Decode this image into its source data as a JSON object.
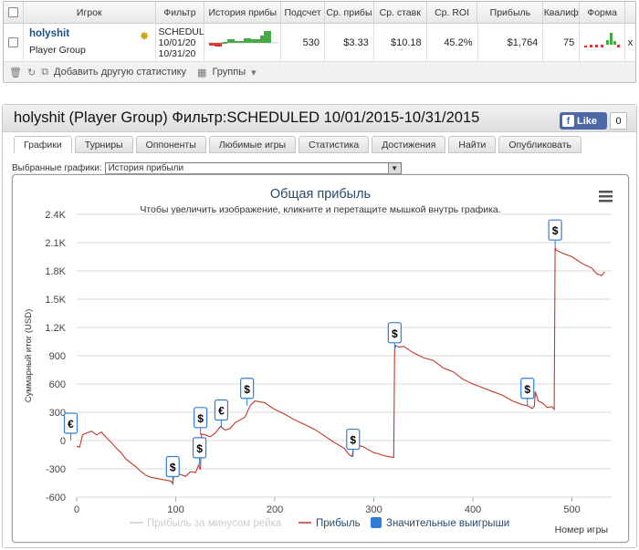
{
  "table": {
    "headers": [
      "Игрок",
      "Фильтр",
      "История прибы",
      "Подсчет",
      "Ср. прибы",
      "Ср. ставк",
      "Ср. ROI",
      "Прибыль",
      "Квалиф",
      "Форма"
    ],
    "row": {
      "player": "holyshit",
      "group": "Player Group",
      "filter_lines": [
        "SCHEDUL",
        "10/01/20",
        "10/31/20"
      ],
      "count": "530",
      "avg_profit": "$3.33",
      "avg_stake": "$10.18",
      "avg_roi": "45.2%",
      "profit": "$1,764",
      "qualif": "75",
      "close": "x"
    },
    "footer": {
      "add_stat": "Добавить другую статистику",
      "groups": "Группы"
    }
  },
  "panel": {
    "title": "holyshit (Player Group) Фильтр:SCHEDULED 10/01/2015-10/31/2015",
    "like": "Like",
    "like_count": "0",
    "tabs": [
      "Графики",
      "Турниры",
      "Оппоненты",
      "Любимые игры",
      "Статистика",
      "Достижения",
      "Найти",
      "Опубликовать"
    ],
    "active_tab": 0,
    "select_label": "Выбранные графики:",
    "select_value": "История прибыли"
  },
  "chart_data": {
    "type": "line",
    "title": "Общая прибыль",
    "subtitle": "Чтобы увеличить изображение, кликните и перетащите мышкой внутрь графика.",
    "ylabel": "Суммарный итог (USD)",
    "xlabel": "Номер игры",
    "xlim": [
      0,
      540
    ],
    "ylim": [
      -600,
      2400
    ],
    "x_ticks": [
      "0",
      "100",
      "200",
      "300",
      "400",
      "500"
    ],
    "y_ticks": [
      "2.4K",
      "2.1K",
      "1.8K",
      "1.5K",
      "1.2K",
      "900",
      "600",
      "300",
      "0",
      "-300",
      "-600"
    ],
    "legend": [
      "Прибыль за минусом рейка",
      "Прибыль",
      "Значительные выигрыши"
    ],
    "colors": {
      "profit": "#c0392b",
      "rake": "#cccccc",
      "big": "#2f7ed8"
    },
    "series": [
      {
        "name": "Прибыль",
        "x": [
          0,
          3,
          6,
          10,
          15,
          20,
          25,
          30,
          35,
          40,
          45,
          50,
          55,
          60,
          65,
          70,
          75,
          80,
          85,
          90,
          95,
          97,
          98,
          100,
          105,
          110,
          115,
          120,
          122,
          123,
          125,
          126,
          130,
          135,
          140,
          145,
          150,
          155,
          160,
          165,
          170,
          175,
          180,
          185,
          190,
          200,
          210,
          220,
          230,
          240,
          250,
          260,
          270,
          275,
          278,
          279,
          282,
          290,
          300,
          305,
          310,
          315,
          320,
          321,
          322,
          325,
          330,
          340,
          350,
          360,
          370,
          380,
          390,
          400,
          410,
          420,
          430,
          440,
          450,
          455,
          460,
          462,
          463,
          466,
          470,
          475,
          480,
          482,
          483,
          484,
          486,
          490,
          500,
          510,
          520,
          525,
          530,
          533
        ],
        "y": [
          -60,
          -70,
          60,
          80,
          100,
          60,
          90,
          30,
          -20,
          -80,
          -130,
          -200,
          -240,
          -280,
          -330,
          -370,
          -390,
          -400,
          -410,
          -420,
          -430,
          -460,
          -370,
          -350,
          -360,
          -380,
          -330,
          -340,
          -290,
          -260,
          -310,
          70,
          60,
          40,
          80,
          150,
          110,
          130,
          190,
          220,
          250,
          370,
          420,
          410,
          400,
          330,
          280,
          220,
          170,
          120,
          50,
          -20,
          -80,
          -150,
          -170,
          -100,
          -40,
          -70,
          -130,
          -140,
          -160,
          -170,
          -180,
          960,
          1010,
          990,
          1000,
          930,
          880,
          850,
          770,
          730,
          650,
          600,
          560,
          520,
          480,
          420,
          380,
          370,
          340,
          370,
          520,
          420,
          400,
          350,
          360,
          330,
          2050,
          2020,
          2010,
          1990,
          1950,
          1880,
          1830,
          1770,
          1750,
          1790
        ]
      }
    ],
    "big_wins": [
      {
        "x": -6,
        "y": 0,
        "sym": "€"
      },
      {
        "x": 97,
        "y": -460,
        "sym": "$"
      },
      {
        "x": 124,
        "y": -260,
        "sym": "$"
      },
      {
        "x": 125,
        "y": 60,
        "sym": "$"
      },
      {
        "x": 146,
        "y": 140,
        "sym": "€"
      },
      {
        "x": 172,
        "y": 370,
        "sym": "$"
      },
      {
        "x": 279,
        "y": -170,
        "sym": "$"
      },
      {
        "x": 321,
        "y": 960,
        "sym": "$"
      },
      {
        "x": 455,
        "y": 370,
        "sym": "$"
      },
      {
        "x": 483,
        "y": 2050,
        "sym": "$"
      }
    ]
  }
}
